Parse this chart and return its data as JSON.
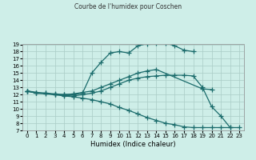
{
  "title": "Courbe de l'humidex pour Coschen",
  "xlabel": "Humidex (Indice chaleur)",
  "background_color": "#ceeee8",
  "grid_color": "#aaccc6",
  "line_color": "#1a6b6b",
  "xlim": [
    -0.5,
    23.5
  ],
  "ylim": [
    7,
    19
  ],
  "xticks": [
    0,
    1,
    2,
    3,
    4,
    5,
    6,
    7,
    8,
    9,
    10,
    11,
    12,
    13,
    14,
    15,
    16,
    17,
    18,
    19,
    20,
    21,
    22,
    23
  ],
  "yticks": [
    7,
    8,
    9,
    10,
    11,
    12,
    13,
    14,
    15,
    16,
    17,
    18,
    19
  ],
  "lines": [
    {
      "x": [
        0,
        1,
        2,
        3,
        4,
        5,
        6,
        7,
        8,
        9,
        10,
        11,
        12,
        13,
        14,
        15,
        16,
        17,
        18
      ],
      "y": [
        12.5,
        12.2,
        12.2,
        12.1,
        12.0,
        12.0,
        12.2,
        15.0,
        16.5,
        17.8,
        18.0,
        17.8,
        18.8,
        19.1,
        19.2,
        19.2,
        18.8,
        18.2,
        18.0
      ]
    },
    {
      "x": [
        0,
        1,
        2,
        3,
        4,
        5,
        6,
        7,
        8,
        9,
        10,
        11,
        12,
        13,
        14,
        15,
        16,
        17,
        18,
        19,
        20,
        21,
        22
      ],
      "y": [
        12.5,
        12.2,
        12.2,
        12.0,
        11.9,
        11.8,
        12.0,
        12.2,
        12.5,
        13.0,
        13.5,
        14.0,
        14.3,
        14.5,
        14.6,
        14.7,
        14.7,
        14.7,
        14.6,
        13.0,
        10.3,
        9.0,
        7.4
      ]
    },
    {
      "x": [
        0,
        1,
        2,
        3,
        4,
        5,
        6,
        7,
        8,
        9,
        10,
        11,
        12,
        13,
        14,
        15,
        16,
        17,
        18,
        19,
        20,
        21,
        22,
        23
      ],
      "y": [
        12.5,
        12.2,
        12.1,
        12.0,
        11.8,
        11.7,
        11.5,
        11.3,
        11.0,
        10.7,
        10.2,
        9.8,
        9.3,
        8.8,
        8.4,
        8.0,
        7.8,
        7.5,
        7.4,
        7.4,
        7.4,
        7.4,
        7.4,
        7.4
      ]
    },
    {
      "x": [
        0,
        3,
        4,
        5,
        6,
        7,
        8,
        9,
        10,
        11,
        12,
        13,
        14,
        19,
        20
      ],
      "y": [
        12.5,
        12.0,
        12.0,
        12.1,
        12.3,
        12.5,
        13.0,
        13.5,
        14.0,
        14.5,
        15.0,
        15.3,
        15.5,
        12.8,
        12.7
      ]
    }
  ]
}
